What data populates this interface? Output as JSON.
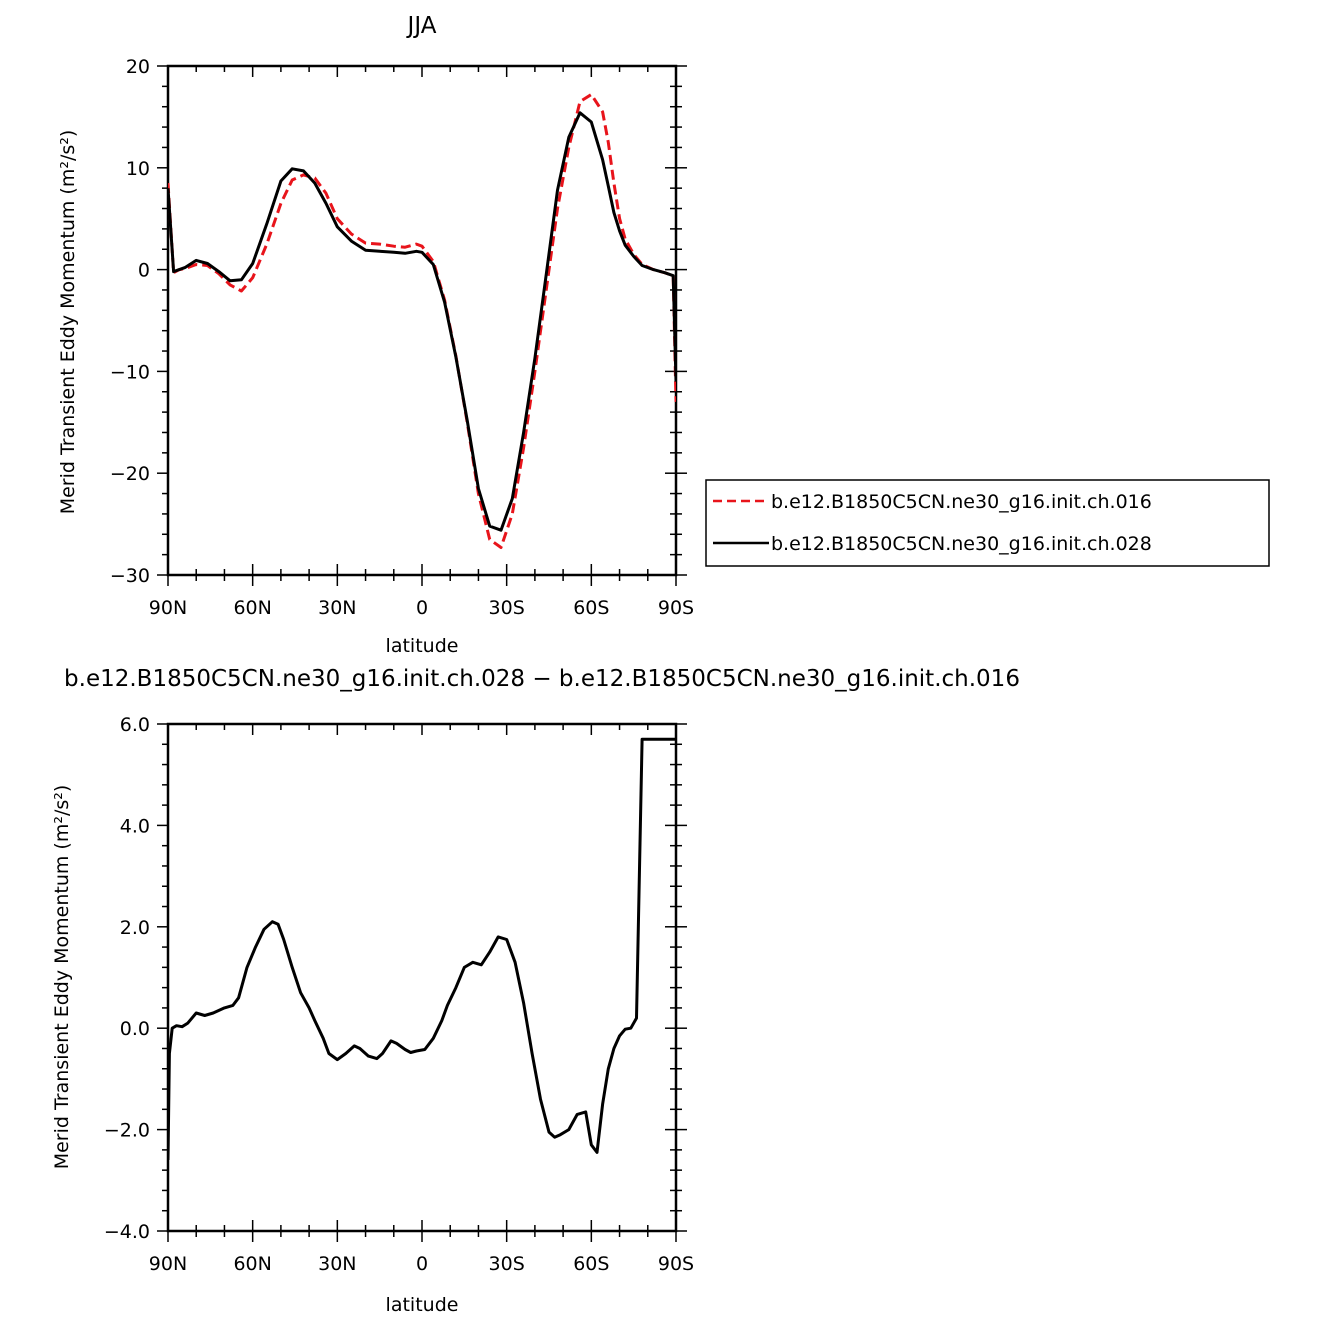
{
  "chart_data": [
    {
      "type": "line",
      "title": "JJA",
      "xlabel": "latitude",
      "ylabel": "Merid Transient Eddy Momentum (m²/s²)",
      "xlim": [
        90,
        -90
      ],
      "ylim": [
        -30,
        20
      ],
      "x_ticks": [
        "90N",
        "60N",
        "30N",
        "0",
        "30S",
        "60S",
        "90S"
      ],
      "y_ticks": [
        "20",
        "10",
        "0",
        "−10",
        "−20",
        "−30"
      ],
      "grid": false,
      "legend_position": "right",
      "x": [
        90,
        88,
        86,
        84,
        80,
        76,
        72,
        68,
        64,
        60,
        55,
        50,
        46,
        42,
        38,
        34,
        30,
        25,
        20,
        15,
        10,
        6,
        2,
        0,
        -4,
        -8,
        -12,
        -16,
        -20,
        -24,
        -28,
        -32,
        -36,
        -40,
        -44,
        -48,
        -52,
        -56,
        -60,
        -64,
        -66,
        -68,
        -70,
        -72,
        -75,
        -78,
        -82,
        -86,
        -89,
        -90
      ],
      "series": [
        {
          "name": "b.e12.B1850C5CN.ne30_g16.init.ch.016",
          "color": "#e8141b",
          "dash": "dashed",
          "values": [
            8.5,
            -0.3,
            0.0,
            0.1,
            0.5,
            0.4,
            -0.4,
            -1.5,
            -2.1,
            -0.8,
            2.5,
            6.5,
            8.8,
            9.3,
            9.0,
            7.5,
            5.0,
            3.5,
            2.6,
            2.5,
            2.3,
            2.2,
            2.5,
            2.3,
            0.8,
            -3.0,
            -8.5,
            -15.0,
            -22.0,
            -26.5,
            -27.3,
            -24.0,
            -17.5,
            -10.0,
            -2.0,
            6.0,
            12.0,
            16.5,
            17.2,
            15.5,
            12.5,
            8.5,
            5.0,
            3.0,
            1.5,
            0.5,
            0.0,
            -0.3,
            -0.6,
            -13.0
          ]
        },
        {
          "name": "b.e12.B1850C5CN.ne30_g16.init.ch.028",
          "color": "#000000",
          "dash": "solid",
          "values": [
            8.0,
            -0.2,
            0.0,
            0.2,
            0.9,
            0.6,
            -0.2,
            -1.1,
            -1.0,
            0.6,
            4.5,
            8.7,
            9.9,
            9.7,
            8.5,
            6.5,
            4.2,
            2.8,
            1.9,
            1.8,
            1.7,
            1.6,
            1.8,
            1.7,
            0.5,
            -3.2,
            -8.6,
            -14.8,
            -21.5,
            -25.2,
            -25.6,
            -22.5,
            -16.0,
            -8.7,
            -0.5,
            7.8,
            13.0,
            15.4,
            14.5,
            10.8,
            8.2,
            5.6,
            3.8,
            2.4,
            1.3,
            0.4,
            0.0,
            -0.3,
            -0.6,
            -11.0
          ]
        }
      ]
    },
    {
      "type": "line",
      "title": "b.e12.B1850C5CN.ne30_g16.init.ch.028 − b.e12.B1850C5CN.ne30_g16.init.ch.016",
      "xlabel": "latitude",
      "ylabel": "Merid Transient Eddy Momentum (m²/s²)",
      "xlim": [
        90,
        -90
      ],
      "ylim": [
        -4.0,
        6.0
      ],
      "x_ticks": [
        "90N",
        "60N",
        "30N",
        "0",
        "30S",
        "60S",
        "90S"
      ],
      "y_ticks": [
        "6.0",
        "4.0",
        "2.0",
        "0.0",
        "−2.0",
        "−4.0"
      ],
      "grid": false,
      "x": [
        90,
        89.5,
        88.5,
        87,
        85,
        83,
        80,
        77,
        74,
        70,
        67,
        65,
        62,
        59,
        56,
        53,
        51,
        49,
        46,
        43,
        40,
        38,
        35,
        33,
        30,
        27,
        24,
        22,
        19,
        16,
        14,
        11,
        9,
        6,
        4,
        2,
        -1,
        -4,
        -7,
        -9,
        -12,
        -15,
        -18,
        -21,
        -24,
        -27,
        -30,
        -33,
        -36,
        -39,
        -42,
        -45,
        -47,
        -49,
        -52,
        -55,
        -58,
        -60,
        -62,
        -64,
        -66,
        -68,
        -70,
        -72,
        -74,
        -76,
        -78,
        -81,
        -84,
        -87,
        -88.5,
        -89.5,
        -90
      ],
      "series": [
        {
          "name": "",
          "color": "#000000",
          "dash": "solid",
          "values": [
            -2.6,
            -0.5,
            0.0,
            0.05,
            0.03,
            0.1,
            0.3,
            0.25,
            0.3,
            0.4,
            0.45,
            0.6,
            1.2,
            1.6,
            1.95,
            2.1,
            2.05,
            1.75,
            1.2,
            0.7,
            0.4,
            0.15,
            -0.2,
            -0.5,
            -0.62,
            -0.5,
            -0.35,
            -0.4,
            -0.55,
            -0.6,
            -0.5,
            -0.25,
            -0.3,
            -0.42,
            -0.48,
            -0.45,
            -0.42,
            -0.2,
            0.15,
            0.45,
            0.8,
            1.2,
            1.3,
            1.25,
            1.5,
            1.8,
            1.75,
            1.3,
            0.5,
            -0.5,
            -1.4,
            -2.05,
            -2.15,
            -2.1,
            -2.0,
            -1.7,
            -1.65,
            -2.3,
            -2.45,
            -1.5,
            -0.8,
            -0.4,
            -0.15,
            -0.02,
            0.0,
            0.2,
            5.7,
            5.7,
            5.7,
            5.7,
            5.7,
            5.7,
            5.7
          ]
        }
      ]
    }
  ]
}
